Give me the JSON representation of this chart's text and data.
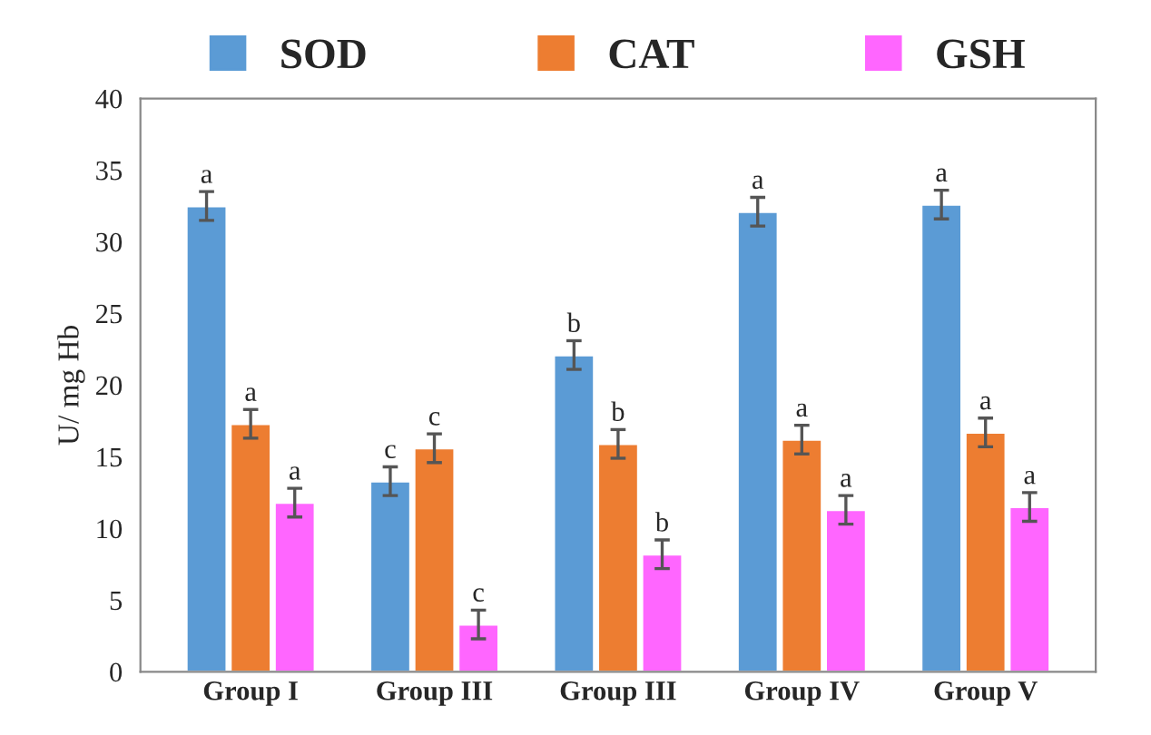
{
  "chart_data": {
    "type": "bar",
    "ylabel": "U/ mg Hb",
    "categories": [
      "Group I",
      "Group III",
      "Group III",
      "Group IV",
      "Group V"
    ],
    "series": [
      {
        "name": "SOD",
        "color": "#5b9bd5",
        "values": [
          32.5,
          13.3,
          22.1,
          32.1,
          32.6
        ],
        "errors": [
          1,
          1,
          1,
          1,
          1
        ],
        "value_labels": [
          "a",
          "c",
          "b",
          "a",
          "a"
        ]
      },
      {
        "name": "CAT",
        "color": "#ed7d31",
        "values": [
          17.3,
          15.6,
          15.9,
          16.2,
          16.7
        ],
        "errors": [
          1,
          1,
          1,
          1,
          1
        ],
        "value_labels": [
          "a",
          "c",
          "b",
          "a",
          "a"
        ]
      },
      {
        "name": "GSH",
        "color": "#ff66ff",
        "values": [
          11.8,
          3.3,
          8.2,
          11.3,
          11.5
        ],
        "errors": [
          1,
          1,
          1,
          1,
          1
        ],
        "value_labels": [
          "a",
          "c",
          "b",
          "a",
          "a"
        ]
      }
    ],
    "ylim": [
      0,
      40
    ],
    "yticks": [
      0,
      5,
      10,
      15,
      20,
      25,
      30,
      35,
      40
    ],
    "grid": false,
    "legend": "top"
  }
}
